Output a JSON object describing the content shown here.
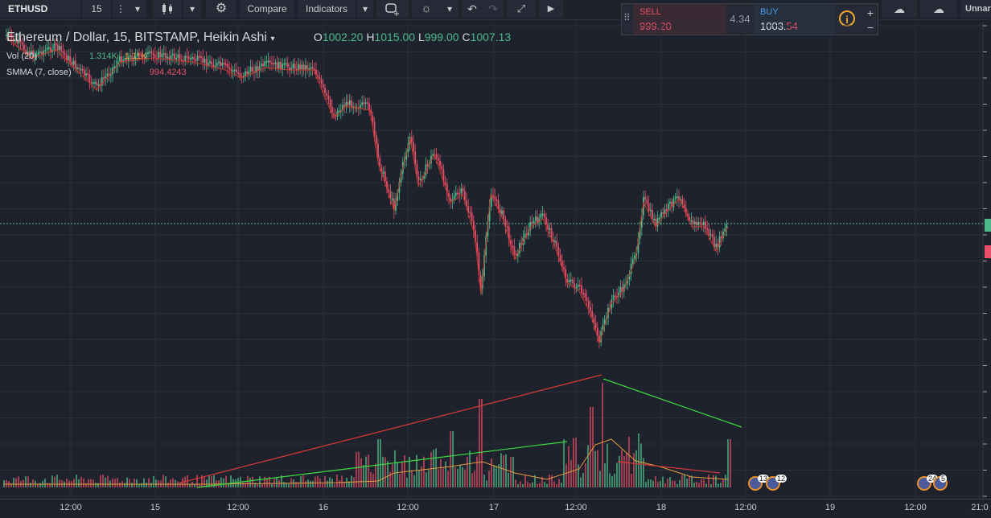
{
  "toolbar": {
    "symbol": "ETHUSD",
    "interval": "15",
    "compare_label": "Compare",
    "indicators_label": "Indicators",
    "layout_name": "Unnar"
  },
  "trade_panel": {
    "sell_label": "SELL",
    "sell_price_main": "999.20",
    "spread": "4.34",
    "buy_label": "BUY",
    "buy_price_main": "1003.",
    "buy_price_tail": "54",
    "info_label": "i",
    "plus_label": "+",
    "minus_label": "−"
  },
  "legend": {
    "title": "Ethereum / Dollar, 15, BITSTAMP, Heikin Ashi",
    "o_label": "O",
    "o_value": "1002.20",
    "h_label": "H",
    "h_value": "1015.00",
    "l_label": "L",
    "l_value": "999.00",
    "c_label": "C",
    "c_value": "1007.13"
  },
  "indicators": {
    "vol_label": "Vol (20)",
    "vol_value1": "1.314K",
    "vol_value2": "1.11K",
    "smma_label": "SMMA (7, close)",
    "smma_value": "994.4243"
  },
  "x_axis": {
    "labels": [
      "12:00",
      "15",
      "12:00",
      "16",
      "12:00",
      "17",
      "12:00",
      "18",
      "12:00",
      "19",
      "12:00",
      "21:0"
    ]
  },
  "events": {
    "flag1": "13",
    "flag2": "12",
    "flag3": "24",
    "flag4": "5"
  },
  "colors": {
    "background": "#1e222d",
    "up": "#4cba8b",
    "down": "#e8506a",
    "smma": "#c0392b",
    "vol_ma": "#e39b3c",
    "trend_red": "#d83a3a",
    "trend_green": "#3ddb3d"
  },
  "icons": [
    "chevron-down-icon",
    "more-vert-icon",
    "candles-icon",
    "gear-icon",
    "alert-plus-icon",
    "bulb-icon",
    "undo-icon",
    "redo-icon",
    "fullscreen-icon",
    "play-icon",
    "cloud-down-icon",
    "cloud-up-icon",
    "drag-handle-icon",
    "info-icon"
  ]
}
